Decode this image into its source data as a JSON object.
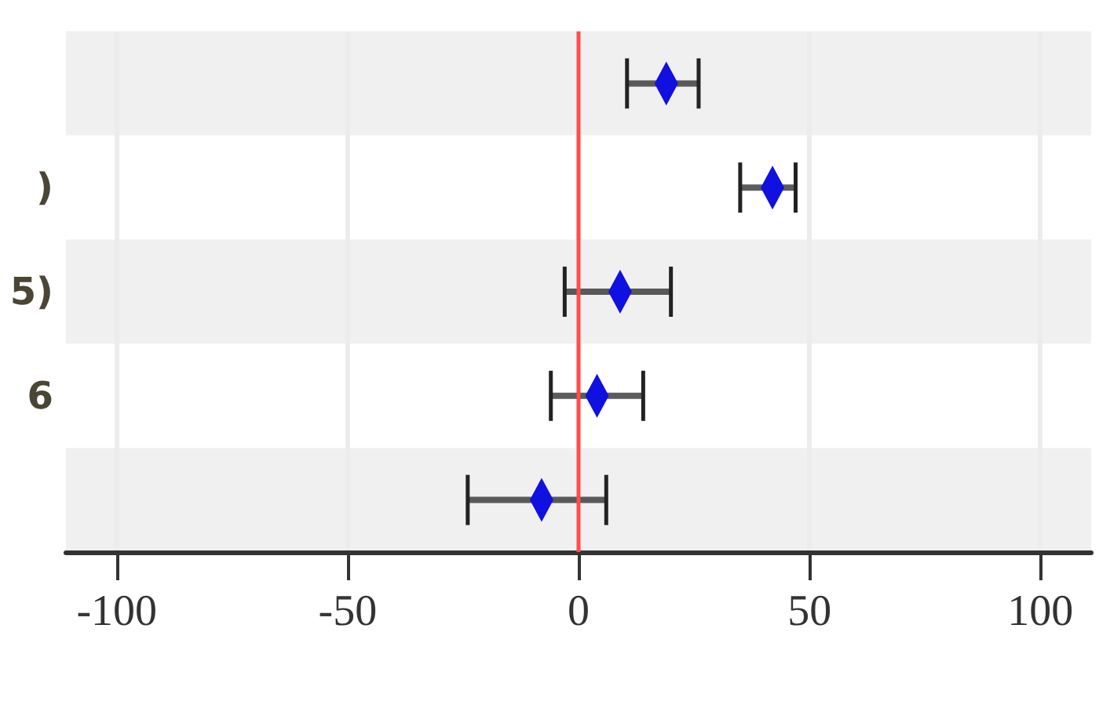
{
  "chart_data": {
    "type": "scatter",
    "orientation": "horizontal",
    "categories": [
      null,
      ")",
      "5)",
      "6",
      null
    ],
    "values": [
      19,
      42,
      9,
      4,
      -8
    ],
    "errors": [
      [
        10.5,
        26
      ],
      [
        35,
        47
      ],
      [
        -3,
        20
      ],
      [
        -6,
        14
      ],
      [
        -24,
        6
      ]
    ],
    "color": "#1010e0",
    "marker": "diamond",
    "xlim": [
      -111,
      111
    ],
    "xticks": [
      -100,
      -50,
      0,
      50,
      100
    ],
    "ref_lines": [
      {
        "axis": "x",
        "value": 0,
        "color": "#ff4d4d"
      }
    ],
    "grid": "x"
  }
}
